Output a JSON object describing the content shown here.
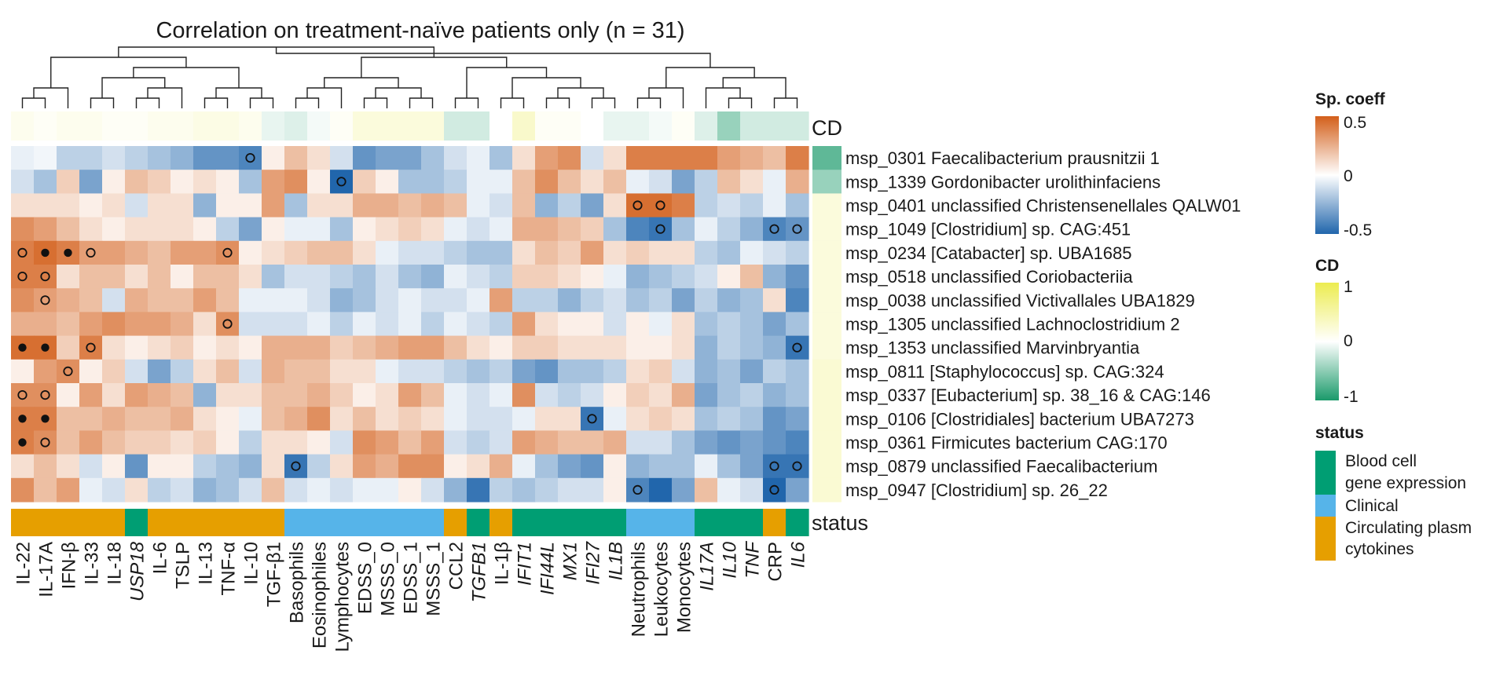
{
  "chart_data": {
    "type": "heatmap",
    "title": "Correlation on treatment-naïve patients only (n = 31)",
    "columns": [
      {
        "label": "IL-22",
        "italic": false,
        "status": "Circulating plasma cytokines"
      },
      {
        "label": "IL-17A",
        "italic": false,
        "status": "Circulating plasma cytokines"
      },
      {
        "label": "IFN-β",
        "italic": false,
        "status": "Circulating plasma cytokines"
      },
      {
        "label": "IL-33",
        "italic": false,
        "status": "Circulating plasma cytokines"
      },
      {
        "label": "IL-18",
        "italic": false,
        "status": "Circulating plasma cytokines"
      },
      {
        "label": "USP18",
        "italic": true,
        "status": "Blood cell gene expression"
      },
      {
        "label": "IL-6",
        "italic": false,
        "status": "Circulating plasma cytokines"
      },
      {
        "label": "TSLP",
        "italic": false,
        "status": "Circulating plasma cytokines"
      },
      {
        "label": "IL-13",
        "italic": false,
        "status": "Circulating plasma cytokines"
      },
      {
        "label": "TNF-α",
        "italic": false,
        "status": "Circulating plasma cytokines"
      },
      {
        "label": "IL-10",
        "italic": false,
        "status": "Circulating plasma cytokines"
      },
      {
        "label": "TGF-β1",
        "italic": false,
        "status": "Circulating plasma cytokines"
      },
      {
        "label": "Basophils",
        "italic": false,
        "status": "Clinical"
      },
      {
        "label": "Eosinophiles",
        "italic": false,
        "status": "Clinical"
      },
      {
        "label": "Lymphocytes",
        "italic": false,
        "status": "Clinical"
      },
      {
        "label": "EDSS_0",
        "italic": false,
        "status": "Clinical"
      },
      {
        "label": "MSSS_0",
        "italic": false,
        "status": "Clinical"
      },
      {
        "label": "EDSS_1",
        "italic": false,
        "status": "Clinical"
      },
      {
        "label": "MSSS_1",
        "italic": false,
        "status": "Clinical"
      },
      {
        "label": "CCL2",
        "italic": false,
        "status": "Circulating plasma cytokines"
      },
      {
        "label": "TGFB1",
        "italic": true,
        "status": "Blood cell gene expression"
      },
      {
        "label": "IL-1β",
        "italic": false,
        "status": "Circulating plasma cytokines"
      },
      {
        "label": "IFIT1",
        "italic": true,
        "status": "Blood cell gene expression"
      },
      {
        "label": "IFI44L",
        "italic": true,
        "status": "Blood cell gene expression"
      },
      {
        "label": "MX1",
        "italic": true,
        "status": "Blood cell gene expression"
      },
      {
        "label": "IFI27",
        "italic": true,
        "status": "Blood cell gene expression"
      },
      {
        "label": "IL1B",
        "italic": true,
        "status": "Blood cell gene expression"
      },
      {
        "label": "Neutrophils",
        "italic": false,
        "status": "Clinical"
      },
      {
        "label": "Leukocytes",
        "italic": false,
        "status": "Clinical"
      },
      {
        "label": "Monocytes",
        "italic": false,
        "status": "Clinical"
      },
      {
        "label": "IL17A",
        "italic": true,
        "status": "Blood cell gene expression"
      },
      {
        "label": "IL10",
        "italic": true,
        "status": "Blood cell gene expression"
      },
      {
        "label": "TNF",
        "italic": true,
        "status": "Blood cell gene expression"
      },
      {
        "label": "CRP",
        "italic": false,
        "status": "Circulating plasma cytokines"
      },
      {
        "label": "IL6",
        "italic": true,
        "status": "Blood cell gene expression"
      }
    ],
    "rows": [
      "msp_0301 Faecalibacterium prausnitzii 1",
      "msp_1339 Gordonibacter urolithinfaciens",
      "msp_0401 unclassified Christensenellales QALW01",
      "msp_1049 [Clostridium] sp. CAG:451",
      "msp_0234 [Catabacter] sp. UBA1685",
      "msp_0518 unclassified Coriobacteriia",
      "msp_0038 unclassified Victivallales UBA1829",
      "msp_1305 unclassified Lachnoclostridium 2",
      "msp_1353 unclassified Marvinbryantia",
      "msp_0811 [Staphylococcus] sp. CAG:324",
      "msp_0337 [Eubacterium] sp. 38_16 & CAG:146",
      "msp_0106 [Clostridiales] bacterium UBA7273",
      "msp_0361 Firmicutes bacterium CAG:170",
      "msp_0879 unclassified Faecalibacterium",
      "msp_0947 [Clostridium] sp. 26_22"
    ],
    "values": [
      [
        -0.05,
        -0.03,
        -0.15,
        -0.15,
        -0.1,
        -0.15,
        -0.2,
        -0.25,
        -0.35,
        -0.35,
        -0.4,
        0.05,
        0.2,
        0.1,
        -0.1,
        -0.35,
        -0.3,
        -0.3,
        -0.2,
        -0.1,
        -0.05,
        -0.2,
        0.1,
        0.3,
        0.35,
        -0.1,
        0.1,
        0.4,
        0.4,
        0.4,
        0.4,
        0.3,
        0.25,
        0.2,
        0.4
      ],
      [
        -0.1,
        -0.2,
        0.15,
        -0.3,
        0.05,
        0.2,
        0.15,
        0.05,
        0.1,
        0.05,
        -0.2,
        0.3,
        0.35,
        0.05,
        -0.5,
        0.15,
        0.05,
        -0.2,
        -0.2,
        -0.15,
        -0.05,
        -0.05,
        0.2,
        0.35,
        0.2,
        0.1,
        0.2,
        -0.05,
        -0.1,
        -0.3,
        -0.15,
        0.2,
        0.1,
        -0.05,
        0.25
      ],
      [
        0.1,
        0.1,
        0.1,
        0.05,
        0.1,
        -0.1,
        0.1,
        0.1,
        -0.25,
        0.05,
        0.05,
        0.3,
        -0.2,
        0.1,
        0.1,
        0.25,
        0.25,
        0.2,
        0.25,
        0.2,
        -0.05,
        -0.1,
        0.2,
        -0.25,
        -0.15,
        -0.3,
        0.1,
        0.45,
        0.45,
        0.4,
        -0.15,
        -0.1,
        -0.15,
        -0.05,
        -0.2
      ],
      [
        0.35,
        0.3,
        0.2,
        0.1,
        0.05,
        0.1,
        0.1,
        0.1,
        0.05,
        -0.15,
        -0.3,
        0.05,
        -0.05,
        -0.05,
        -0.2,
        0.05,
        0.1,
        0.15,
        0.1,
        -0.05,
        -0.1,
        -0.05,
        0.25,
        0.25,
        0.2,
        0.15,
        -0.2,
        -0.4,
        -0.45,
        -0.2,
        -0.05,
        -0.15,
        -0.25,
        -0.4,
        -0.35
      ],
      [
        0.4,
        0.45,
        0.4,
        0.3,
        0.3,
        0.25,
        0.2,
        0.3,
        0.3,
        0.35,
        0.05,
        0.1,
        0.15,
        0.2,
        0.2,
        0.1,
        -0.05,
        -0.1,
        -0.1,
        -0.15,
        -0.2,
        -0.2,
        0.1,
        0.2,
        0.15,
        0.3,
        0.1,
        0.15,
        0.1,
        0.1,
        -0.15,
        -0.2,
        -0.05,
        -0.1,
        -0.15
      ],
      [
        0.4,
        0.4,
        0.1,
        0.2,
        0.2,
        0.1,
        0.2,
        0.05,
        0.2,
        0.2,
        0.1,
        -0.2,
        -0.1,
        -0.1,
        -0.15,
        -0.2,
        -0.1,
        -0.2,
        -0.25,
        -0.05,
        -0.1,
        -0.15,
        0.15,
        0.15,
        0.1,
        0.05,
        -0.05,
        -0.25,
        -0.2,
        -0.15,
        -0.1,
        0.05,
        0.2,
        -0.25,
        -0.35
      ],
      [
        0.35,
        0.3,
        0.25,
        0.2,
        -0.1,
        0.25,
        0.2,
        0.2,
        0.3,
        0.2,
        -0.05,
        -0.05,
        -0.05,
        -0.1,
        -0.25,
        -0.2,
        -0.1,
        -0.05,
        -0.1,
        -0.1,
        -0.05,
        0.3,
        -0.15,
        -0.15,
        -0.25,
        -0.15,
        -0.1,
        -0.2,
        -0.15,
        -0.3,
        -0.15,
        -0.25,
        -0.2,
        0.1,
        -0.4
      ],
      [
        0.25,
        0.25,
        0.2,
        0.3,
        0.35,
        0.3,
        0.3,
        0.25,
        0.1,
        0.35,
        -0.1,
        -0.1,
        -0.1,
        -0.05,
        -0.15,
        -0.05,
        -0.1,
        -0.05,
        -0.15,
        -0.05,
        -0.1,
        -0.15,
        0.3,
        0.1,
        0.05,
        0.05,
        -0.1,
        0.05,
        -0.05,
        0.1,
        -0.2,
        -0.15,
        -0.2,
        -0.3,
        -0.2
      ],
      [
        0.45,
        0.45,
        0.15,
        0.4,
        0.1,
        0.05,
        0.1,
        0.15,
        0.05,
        0.1,
        0.05,
        0.25,
        0.25,
        0.25,
        0.15,
        0.2,
        0.25,
        0.3,
        0.3,
        0.2,
        0.1,
        0.05,
        0.15,
        0.15,
        0.1,
        0.1,
        0.1,
        0.05,
        0.05,
        0.1,
        -0.25,
        -0.15,
        -0.2,
        -0.25,
        -0.45
      ],
      [
        0.05,
        0.3,
        0.35,
        0.05,
        0.15,
        -0.1,
        -0.3,
        -0.15,
        0.1,
        0.2,
        -0.1,
        0.25,
        0.2,
        0.2,
        0.1,
        0.1,
        -0.05,
        -0.1,
        -0.1,
        -0.15,
        -0.2,
        -0.15,
        -0.3,
        -0.35,
        -0.2,
        -0.2,
        -0.15,
        0.1,
        0.15,
        -0.1,
        -0.25,
        -0.2,
        -0.3,
        -0.15,
        -0.2
      ],
      [
        0.35,
        0.35,
        0.05,
        0.3,
        0.1,
        0.3,
        0.25,
        0.2,
        -0.25,
        0.1,
        0.1,
        0.2,
        0.2,
        0.25,
        0.15,
        0.05,
        0.1,
        0.3,
        0.2,
        -0.05,
        -0.1,
        -0.05,
        0.35,
        -0.1,
        -0.15,
        -0.1,
        0.05,
        0.15,
        0.1,
        0.25,
        -0.3,
        -0.2,
        -0.15,
        -0.25,
        -0.2
      ],
      [
        0.4,
        0.4,
        0.2,
        0.2,
        0.25,
        0.2,
        0.2,
        0.25,
        0.1,
        0.05,
        -0.05,
        0.2,
        0.25,
        0.35,
        0.1,
        0.2,
        0.1,
        0.15,
        0.1,
        -0.05,
        -0.1,
        -0.1,
        -0.05,
        0.1,
        0.1,
        -0.45,
        -0.05,
        0.1,
        0.15,
        0.1,
        -0.2,
        -0.15,
        -0.2,
        -0.35,
        -0.3
      ],
      [
        0.4,
        0.35,
        0.2,
        0.3,
        0.2,
        0.15,
        0.15,
        0.1,
        0.15,
        0.05,
        -0.15,
        0.1,
        0.1,
        0.05,
        -0.1,
        0.35,
        0.3,
        0.2,
        0.3,
        -0.1,
        -0.15,
        -0.1,
        0.3,
        0.25,
        0.2,
        0.2,
        0.25,
        -0.1,
        -0.1,
        -0.2,
        -0.3,
        -0.35,
        -0.3,
        -0.35,
        -0.4
      ],
      [
        0.1,
        0.2,
        0.1,
        -0.1,
        0.05,
        -0.35,
        0.05,
        0.05,
        -0.15,
        -0.2,
        -0.25,
        0.1,
        -0.45,
        -0.15,
        0.1,
        0.3,
        0.25,
        0.35,
        0.35,
        0.05,
        0.1,
        0.25,
        -0.05,
        -0.2,
        -0.3,
        -0.35,
        0.05,
        -0.25,
        -0.2,
        -0.2,
        -0.05,
        -0.2,
        -0.3,
        -0.45,
        -0.45
      ],
      [
        0.35,
        0.2,
        0.3,
        -0.05,
        -0.1,
        0.1,
        -0.15,
        -0.1,
        -0.25,
        -0.2,
        -0.1,
        0.2,
        -0.1,
        -0.05,
        -0.1,
        -0.05,
        -0.05,
        0.05,
        -0.1,
        -0.25,
        -0.45,
        -0.15,
        -0.2,
        -0.15,
        -0.1,
        -0.1,
        0.05,
        -0.4,
        -0.5,
        -0.3,
        0.2,
        -0.05,
        -0.1,
        -0.5,
        -0.3
      ]
    ],
    "significance": [
      {
        "row": 0,
        "col": 10,
        "marker": "open"
      },
      {
        "row": 1,
        "col": 14,
        "marker": "open"
      },
      {
        "row": 2,
        "col": 27,
        "marker": "open"
      },
      {
        "row": 2,
        "col": 28,
        "marker": "open"
      },
      {
        "row": 3,
        "col": 28,
        "marker": "open"
      },
      {
        "row": 3,
        "col": 33,
        "marker": "open"
      },
      {
        "row": 3,
        "col": 34,
        "marker": "open"
      },
      {
        "row": 4,
        "col": 0,
        "marker": "open"
      },
      {
        "row": 4,
        "col": 1,
        "marker": "filled"
      },
      {
        "row": 4,
        "col": 2,
        "marker": "filled"
      },
      {
        "row": 4,
        "col": 3,
        "marker": "open"
      },
      {
        "row": 4,
        "col": 9,
        "marker": "open"
      },
      {
        "row": 5,
        "col": 0,
        "marker": "open"
      },
      {
        "row": 5,
        "col": 1,
        "marker": "open"
      },
      {
        "row": 6,
        "col": 1,
        "marker": "open"
      },
      {
        "row": 7,
        "col": 9,
        "marker": "open"
      },
      {
        "row": 8,
        "col": 0,
        "marker": "filled"
      },
      {
        "row": 8,
        "col": 1,
        "marker": "filled"
      },
      {
        "row": 8,
        "col": 3,
        "marker": "open"
      },
      {
        "row": 8,
        "col": 34,
        "marker": "open"
      },
      {
        "row": 9,
        "col": 2,
        "marker": "open"
      },
      {
        "row": 10,
        "col": 0,
        "marker": "open"
      },
      {
        "row": 10,
        "col": 1,
        "marker": "open"
      },
      {
        "row": 11,
        "col": 0,
        "marker": "filled"
      },
      {
        "row": 11,
        "col": 1,
        "marker": "filled"
      },
      {
        "row": 11,
        "col": 25,
        "marker": "open"
      },
      {
        "row": 12,
        "col": 0,
        "marker": "filled"
      },
      {
        "row": 12,
        "col": 1,
        "marker": "open"
      },
      {
        "row": 13,
        "col": 12,
        "marker": "open"
      },
      {
        "row": 13,
        "col": 33,
        "marker": "open"
      },
      {
        "row": 13,
        "col": 34,
        "marker": "open"
      },
      {
        "row": 14,
        "col": 27,
        "marker": "open"
      },
      {
        "row": 14,
        "col": 33,
        "marker": "open"
      }
    ],
    "cd_column_values": [
      0.1,
      0.05,
      0.1,
      0.1,
      0.05,
      0.05,
      0.1,
      0.1,
      0.15,
      0.15,
      0.1,
      -0.1,
      -0.15,
      -0.05,
      0.05,
      0.2,
      0.2,
      0.2,
      0.2,
      -0.2,
      -0.2,
      0.0,
      0.3,
      0.05,
      0.05,
      0.0,
      -0.1,
      -0.1,
      -0.05,
      0.05,
      -0.15,
      -0.45,
      -0.2,
      -0.2,
      -0.2
    ],
    "cd_row_values": [
      -0.7,
      -0.45,
      0.2,
      0.2,
      0.2,
      0.2,
      0.2,
      0.2,
      0.2,
      0.25,
      0.25,
      0.25,
      0.25,
      0.25,
      0.25
    ],
    "annotation_labels": {
      "cd_top": "CD",
      "status_bottom": "status"
    },
    "legend": {
      "sp_coeff": {
        "title": "Sp. coeff",
        "ticks": [
          "0.5",
          "0",
          "-0.5"
        ],
        "range": [
          -0.5,
          0.5
        ]
      },
      "cd": {
        "title": "CD",
        "ticks": [
          "1",
          "0",
          "-1"
        ],
        "range": [
          -1,
          1
        ]
      },
      "status": {
        "title": "status",
        "items": [
          {
            "key": "Blood cell gene expression",
            "lines": [
              "Blood cell",
              "gene expression"
            ]
          },
          {
            "key": "Clinical",
            "lines": [
              "Clinical"
            ]
          },
          {
            "key": "Circulating plasma cytokines",
            "lines": [
              "Circulating plasm",
              "cytokines"
            ]
          }
        ]
      }
    },
    "colors": {
      "negative": "#2166ac",
      "neutral": "#ffffff",
      "positive": "#d35f1a",
      "cd_negative": "#1a9a6a",
      "cd_positive": "#ecec50",
      "status_blood": "#009e73",
      "status_clinical": "#56b4e9",
      "status_cytokines": "#e69f00"
    }
  }
}
